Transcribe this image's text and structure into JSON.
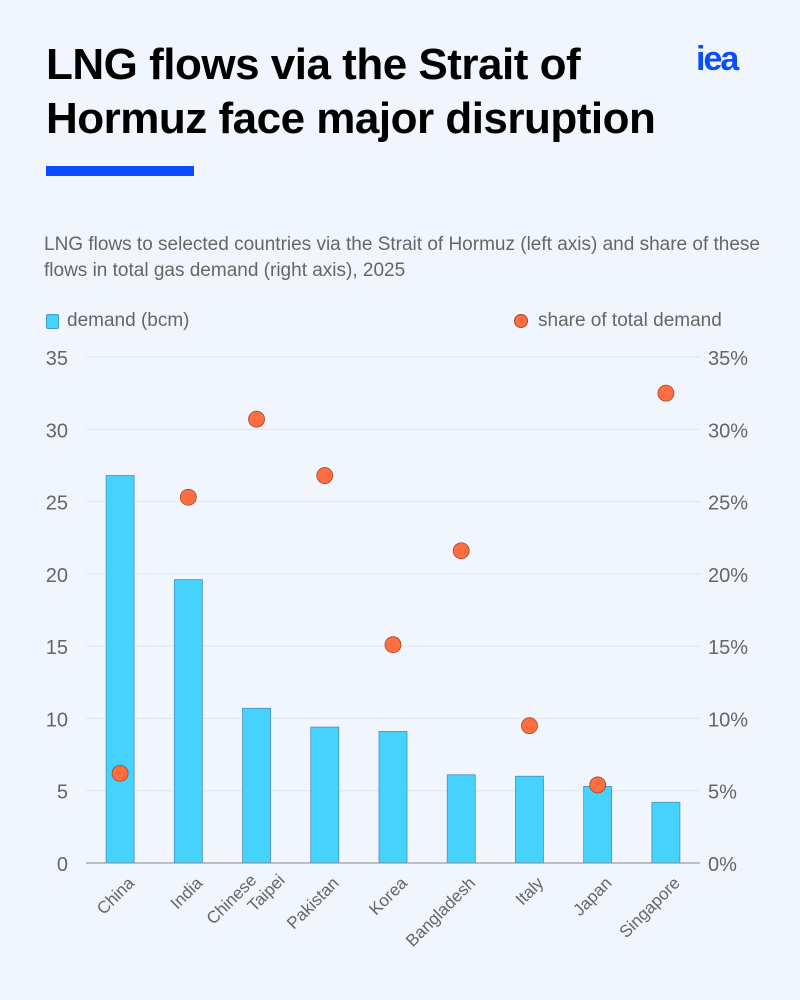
{
  "header": {
    "title": "LNG flows via the Strait of Hormuz face major disruption",
    "logo": "iea",
    "accent_color": "#0a4cff"
  },
  "chart_data": {
    "type": "bar",
    "title": "LNG flows via the Strait of Hormuz face major disruption",
    "subtitle": "LNG flows to selected countries via the Strait of Hormuz (left axis) and share of these flows in total gas demand (right axis), 2025",
    "categories": [
      "China",
      "India",
      "Chinese Taipei",
      "Pakistan",
      "Korea",
      "Bangladesh",
      "Italy",
      "Japan",
      "Singapore"
    ],
    "category_lines": [
      [
        "China"
      ],
      [
        "India"
      ],
      [
        "Chinese",
        "Taipei"
      ],
      [
        "Pakistan"
      ],
      [
        "Korea"
      ],
      [
        "Bangladesh"
      ],
      [
        "Italy"
      ],
      [
        "Japan"
      ],
      [
        "Singapore"
      ]
    ],
    "series": [
      {
        "name": "demand (bcm)",
        "type": "bar",
        "axis": "left",
        "color": "#45d2fd",
        "values": [
          26.8,
          19.6,
          10.7,
          9.4,
          9.1,
          6.1,
          6.0,
          5.3,
          4.2
        ]
      },
      {
        "name": "share of total demand",
        "type": "scatter",
        "axis": "right",
        "color": "#ff6e40",
        "values": [
          6.2,
          25.3,
          30.7,
          26.8,
          15.1,
          21.6,
          9.5,
          5.4,
          32.5
        ]
      }
    ],
    "ylim": [
      0,
      35
    ],
    "y_ticks": [
      "0",
      "5",
      "10",
      "15",
      "20",
      "25",
      "30",
      "35"
    ],
    "y2lim": [
      0,
      35
    ],
    "y2_ticks": [
      "0%",
      "5%",
      "10%",
      "15%",
      "20%",
      "25%",
      "30%",
      "35%"
    ],
    "grid": true,
    "legend": "top"
  }
}
